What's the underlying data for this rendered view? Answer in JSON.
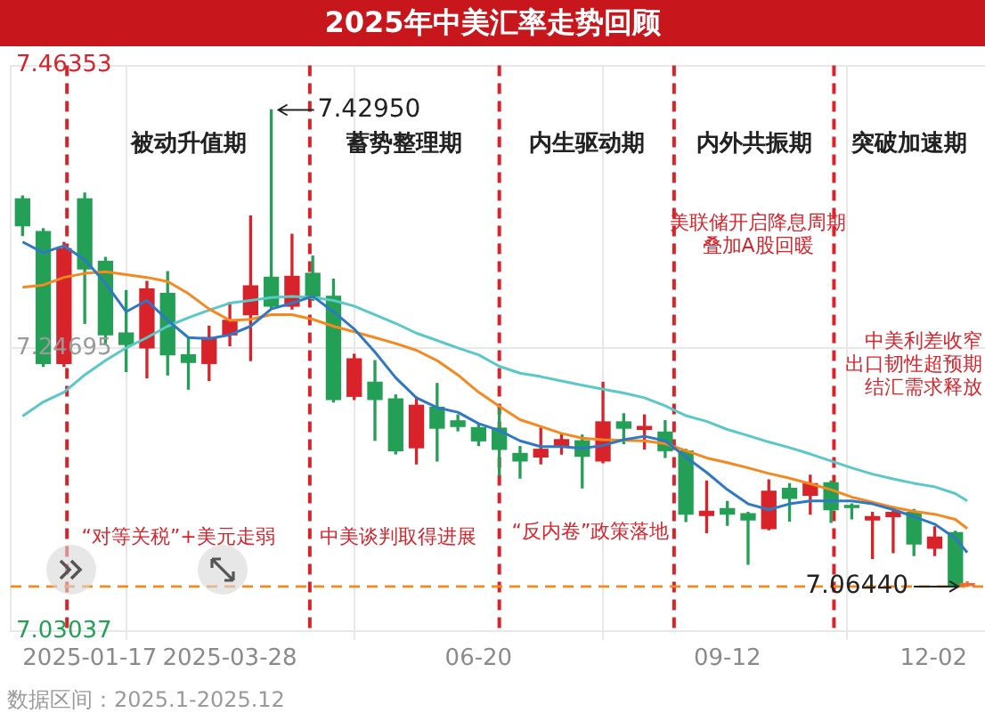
{
  "chart_data": {
    "type": "candlestick",
    "title": "2025年中美汇率走势回顾",
    "x": [
      "2025-01-17",
      "2025-01-24",
      "2025-01-31",
      "2025-02-07",
      "2025-02-14",
      "2025-02-21",
      "2025-02-28",
      "2025-03-07",
      "2025-03-14",
      "2025-03-21",
      "2025-03-28",
      "2025-04-04",
      "2025-04-11",
      "2025-04-18",
      "2025-04-25",
      "2025-05-02",
      "2025-05-09",
      "2025-05-16",
      "2025-05-23",
      "2025-05-30",
      "2025-06-06",
      "2025-06-13",
      "2025-06-20",
      "2025-06-27",
      "2025-07-04",
      "2025-07-11",
      "2025-07-18",
      "2025-07-25",
      "2025-08-01",
      "2025-08-08",
      "2025-08-15",
      "2025-08-22",
      "2025-08-29",
      "2025-09-05",
      "2025-09-12",
      "2025-09-19",
      "2025-09-26",
      "2025-10-03",
      "2025-10-10",
      "2025-10-17",
      "2025-10-24",
      "2025-10-31",
      "2025-11-07",
      "2025-11-14",
      "2025-11-21",
      "2025-11-28",
      "2025-12-02"
    ],
    "ohlc": [
      [
        7.3614,
        7.3636,
        7.3333,
        7.3408
      ],
      [
        7.3363,
        7.3385,
        7.2331,
        7.2353
      ],
      [
        7.2353,
        7.328,
        7.2331,
        7.3231
      ],
      [
        7.3614,
        7.3658,
        7.266,
        7.3078
      ],
      [
        7.3135,
        7.3165,
        7.2506,
        7.2572
      ],
      [
        7.2586,
        7.2911,
        7.2291,
        7.2498
      ],
      [
        7.2472,
        7.2981,
        7.2243,
        7.2924
      ],
      [
        7.2889,
        7.3056,
        7.2265,
        7.2419
      ],
      [
        7.2419,
        7.2551,
        7.2156,
        7.2361
      ],
      [
        7.2353,
        7.2638,
        7.2222,
        7.2551
      ],
      [
        7.2572,
        7.2819,
        7.2489,
        7.2683
      ],
      [
        7.2726,
        7.3482,
        7.2375,
        7.2947
      ],
      [
        7.3013,
        7.4295,
        7.277,
        7.2792
      ],
      [
        7.2792,
        7.3342,
        7.277,
        7.302
      ],
      [
        7.3043,
        7.3175,
        7.2836,
        7.2867
      ],
      [
        7.2867,
        7.2999,
        7.2058,
        7.2077
      ],
      [
        7.2101,
        7.2423,
        7.2077,
        7.2388
      ],
      [
        7.2209,
        7.2374,
        7.1764,
        7.2077
      ],
      [
        7.2081,
        7.2111,
        7.166,
        7.1685
      ],
      [
        7.1707,
        7.2094,
        7.1584,
        7.2032
      ],
      [
        7.2017,
        7.2199,
        7.1606,
        7.1857
      ],
      [
        7.1913,
        7.1958,
        7.1837,
        7.187
      ],
      [
        7.1861,
        7.1891,
        7.1724,
        7.176
      ],
      [
        7.1857,
        7.2002,
        7.1497,
        7.1695
      ],
      [
        7.1663,
        7.1716,
        7.1474,
        7.1606
      ],
      [
        7.1637,
        7.1857,
        7.1584,
        7.1695
      ],
      [
        7.1716,
        7.1805,
        7.1659,
        7.1769
      ],
      [
        7.176,
        7.1804,
        7.14,
        7.1642
      ],
      [
        7.1606,
        7.2208,
        7.1593,
        7.1905
      ],
      [
        7.1905,
        7.1967,
        7.1738,
        7.1857
      ],
      [
        7.1848,
        7.1958,
        7.1698,
        7.187
      ],
      [
        7.1827,
        7.1914,
        7.1633,
        7.1685
      ],
      [
        7.1683,
        7.1695,
        7.1142,
        7.1198
      ],
      [
        7.1189,
        7.1452,
        7.1057,
        7.122
      ],
      [
        7.1241,
        7.1295,
        7.1114,
        7.1198
      ],
      [
        7.1202,
        7.1211,
        7.0815,
        7.1154
      ],
      [
        7.1088,
        7.1461,
        7.1079,
        7.1373
      ],
      [
        7.1395,
        7.1431,
        7.1145,
        7.132
      ],
      [
        7.1343,
        7.1497,
        7.1198,
        7.1431
      ],
      [
        7.1439,
        7.1452,
        7.1136,
        7.1233
      ],
      [
        7.1264,
        7.1277,
        7.1162,
        7.125
      ],
      [
        7.1154,
        7.1211,
        7.0859,
        7.118
      ],
      [
        7.118,
        7.1255,
        7.0903,
        7.1211
      ],
      [
        7.1211,
        7.1233,
        7.0882,
        7.097
      ],
      [
        7.0937,
        7.1101,
        7.0882,
        7.1022
      ],
      [
        7.1056,
        7.1066,
        7.0648,
        7.0652
      ],
      [
        7.0652,
        7.068,
        7.0644,
        7.0662
      ]
    ],
    "colors": [
      "#23a055",
      "#23a055",
      "#d9232b",
      "#23a055",
      "#23a055",
      "#23a055",
      "#d9232b",
      "#23a055",
      "#23a055",
      "#d9232b",
      "#d9232b",
      "#d9232b",
      "#23a055",
      "#d9232b",
      "#23a055",
      "#23a055",
      "#d9232b",
      "#23a055",
      "#23a055",
      "#d9232b",
      "#23a055",
      "#23a055",
      "#23a055",
      "#23a055",
      "#23a055",
      "#d9232b",
      "#d9232b",
      "#23a055",
      "#d9232b",
      "#23a055",
      "#d9232b",
      "#23a055",
      "#23a055",
      "#d9232b",
      "#23a055",
      "#23a055",
      "#d9232b",
      "#23a055",
      "#d9232b",
      "#23a055",
      "#23a055",
      "#d9232b",
      "#d9232b",
      "#23a055",
      "#d9232b",
      "#23a055",
      "#f26b2a"
    ],
    "series": [
      {
        "type": "line",
        "color": "#2f78c4",
        "values": [
          7.3284,
          7.3201,
          7.3254,
          7.3148,
          7.2968,
          7.2749,
          7.2836,
          7.2683,
          7.2551,
          7.2542,
          7.2572,
          7.2638,
          7.277,
          7.2815,
          7.2867,
          7.2749,
          7.2617,
          7.244,
          7.2243,
          7.209,
          7.2015,
          7.1979,
          7.1892,
          7.1839,
          7.176,
          7.1716,
          7.1716,
          7.1702,
          7.1725,
          7.1768,
          7.1795,
          7.176,
          7.1636,
          7.1518,
          7.1386,
          7.1277,
          7.1233,
          7.1277,
          7.1299,
          7.1299,
          7.1299,
          7.1277,
          7.1233,
          7.118,
          7.1122,
          7.1013,
          7.0904
        ]
      },
      {
        "type": "line",
        "color": "#f5891f",
        "values": [
          7.2937,
          7.2954,
          7.3012,
          7.3043,
          7.3056,
          7.3033,
          7.3012,
          7.2981,
          7.2888,
          7.277,
          7.2683,
          7.2691,
          7.2726,
          7.2726,
          7.2691,
          7.2638,
          7.2595,
          7.2551,
          7.2506,
          7.2454,
          7.2375,
          7.2265,
          7.2133,
          7.2024,
          7.1922,
          7.187,
          7.1817,
          7.1781,
          7.1768,
          7.1764,
          7.176,
          7.1738,
          7.1685,
          7.1629,
          7.1593,
          7.1553,
          7.151,
          7.1474,
          7.1431,
          7.1386,
          7.1329,
          7.129,
          7.125,
          7.122,
          7.1198,
          7.1158,
          7.1088
        ]
      },
      {
        "type": "line",
        "color": "#5bc8c8",
        "values": [
          7.1949,
          7.2058,
          7.2133,
          7.2265,
          7.2375,
          7.2472,
          7.2551,
          7.2638,
          7.2704,
          7.2762,
          7.2815,
          7.2836,
          7.2858,
          7.2867,
          7.2858,
          7.2836,
          7.2792,
          7.2726,
          7.266,
          7.2585,
          7.2529,
          7.2472,
          7.2419,
          7.2331,
          7.2278,
          7.2252,
          7.2219,
          7.2186,
          7.2156,
          7.2127,
          7.209,
          7.2028,
          7.1953,
          7.1909,
          7.1847,
          7.18,
          7.1751,
          7.1708,
          7.1659,
          7.1606,
          7.1553,
          7.1505,
          7.1468,
          7.1435,
          7.1408,
          7.1356,
          7.1299
        ]
      }
    ],
    "xlim": [
      "2025-01-13",
      "2025-12-08"
    ],
    "xticks": [
      "2025-01-17",
      "2025-03-28",
      {
        "value": "2025-06-20",
        "label": "06-20"
      },
      {
        "value": "2025-09-12",
        "label": "09-12"
      },
      {
        "value": "2025-12-02",
        "label": "12-02"
      }
    ],
    "ylim": [
      7.03037,
      7.46353
    ],
    "yticks": [
      7.46353,
      7.24695,
      7.03037
    ],
    "grid": true,
    "ref_lines": [
      {
        "axis": "x",
        "value": "2025-02-01",
        "label": "被动升值期",
        "color": "#d9232b",
        "line_style": "dashed"
      },
      {
        "axis": "x",
        "value": "2025-04-24",
        "label": "蓄势整理期",
        "color": "#d9232b",
        "line_style": "dashed"
      },
      {
        "axis": "x",
        "value": "2025-06-27",
        "label": "内生驱动期",
        "color": "#d9232b",
        "line_style": "dashed"
      },
      {
        "axis": "x",
        "value": "2025-08-25",
        "label": "内外共振期",
        "color": "#d9232b",
        "line_style": "dashed"
      },
      {
        "axis": "x",
        "value": "2025-10-18",
        "label": "突破加速期",
        "color": "#d9232b",
        "line_style": "dashed"
      },
      {
        "axis": "y",
        "value": 7.0644,
        "color": "#f5891f",
        "line_style": "dashed"
      }
    ],
    "annotations": [
      "“对等关税”+美元走弱",
      "中美谈判取得进展",
      "“反内卷”政策落地",
      "美联储开启降息周期叠加A股回暖",
      "中美利差收窄出口韧性超预期结汇需求释放",
      "数据区间：2025.1-2025.12",
      {
        "text": "7.42950",
        "x": "2025-04-11",
        "y": 7.4295
      },
      {
        "text": "7.06440",
        "x": "2025-12-02",
        "y": 7.0644
      }
    ]
  }
}
